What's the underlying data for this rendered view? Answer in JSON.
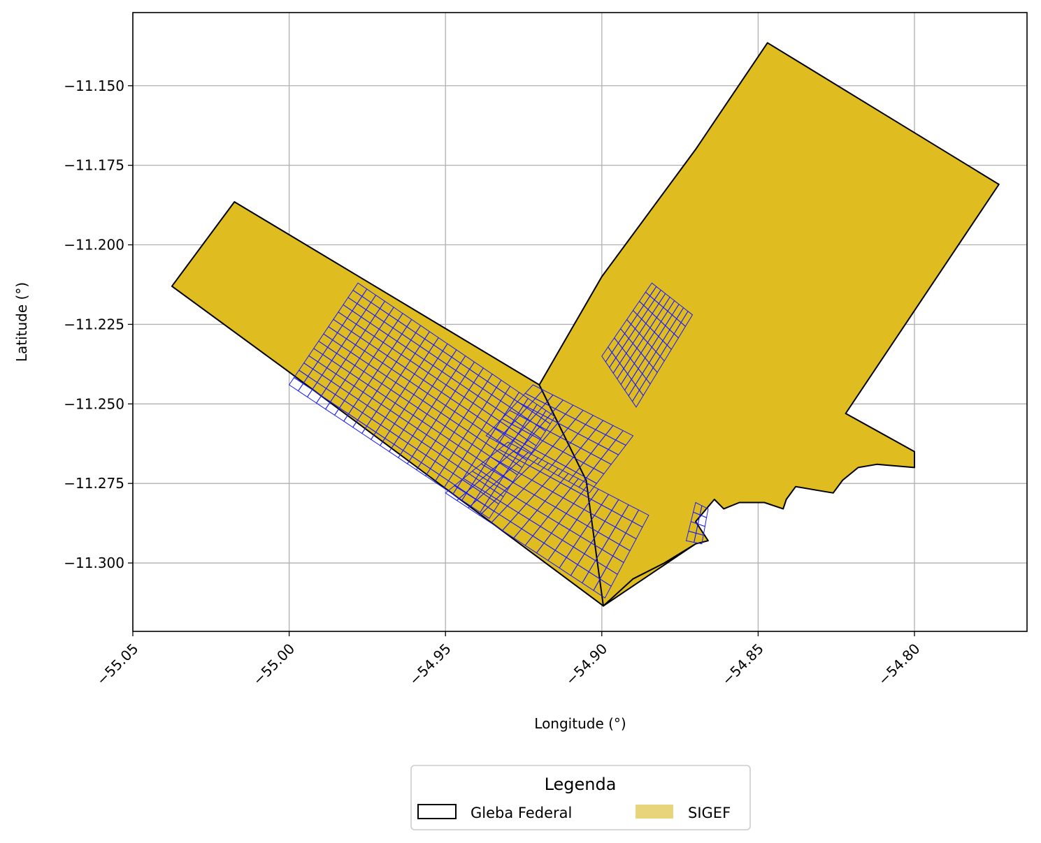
{
  "chart_data": {
    "type": "map",
    "xlabel": "Longitude (°)",
    "ylabel": "Latitude (°)",
    "xlim": [
      -55.05,
      -54.764
    ],
    "ylim": [
      -11.3215,
      -11.127
    ],
    "grid": true,
    "x_ticks": [
      {
        "value": -55.05,
        "label": "−55.05"
      },
      {
        "value": -55.0,
        "label": "−55.00"
      },
      {
        "value": -54.95,
        "label": "−54.95"
      },
      {
        "value": -54.9,
        "label": "−54.90"
      },
      {
        "value": -54.85,
        "label": "−54.85"
      },
      {
        "value": -54.8,
        "label": "−54.80"
      }
    ],
    "y_ticks": [
      {
        "value": -11.15,
        "label": "−11.150"
      },
      {
        "value": -11.175,
        "label": "−11.175"
      },
      {
        "value": -11.2,
        "label": "−11.200"
      },
      {
        "value": -11.225,
        "label": "−11.225"
      },
      {
        "value": -11.25,
        "label": "−11.250"
      },
      {
        "value": -11.275,
        "label": "−11.275"
      },
      {
        "value": -11.3,
        "label": "−11.300"
      }
    ],
    "legend": {
      "title": "Legenda",
      "placement": "bottom-center",
      "entries": [
        {
          "label": "Gleba Federal",
          "style": "outline",
          "color": "#000000"
        },
        {
          "label": "SIGEF",
          "style": "fill",
          "color": "#e8d47a"
        }
      ]
    },
    "colors": {
      "gleba_fill": "#dfbd20",
      "gleba_edge": "#000000",
      "sigef_edge": "#1a1aff",
      "grid": "#b0b0b0"
    },
    "gleba_polygons": [
      {
        "name": "gleba-nw-strip",
        "coords": [
          [
            -55.0375,
            -11.213
          ],
          [
            -55.0175,
            -11.1865
          ],
          [
            -54.92,
            -11.244
          ],
          [
            -54.905,
            -11.274
          ],
          [
            -54.87,
            -11.294
          ],
          [
            -54.8995,
            -11.3135
          ],
          [
            -55.0,
            -11.24
          ]
        ]
      },
      {
        "name": "gleba-ne-block",
        "coords": [
          [
            -54.847,
            -11.1365
          ],
          [
            -54.773,
            -11.181
          ],
          [
            -54.822,
            -11.253
          ],
          [
            -54.8,
            -11.265
          ],
          [
            -54.8,
            -11.27
          ],
          [
            -54.812,
            -11.269
          ],
          [
            -54.818,
            -11.27
          ],
          [
            -54.823,
            -11.274
          ],
          [
            -54.826,
            -11.278
          ],
          [
            -54.832,
            -11.277
          ],
          [
            -54.838,
            -11.276
          ],
          [
            -54.841,
            -11.28
          ],
          [
            -54.842,
            -11.283
          ],
          [
            -54.848,
            -11.281
          ],
          [
            -54.856,
            -11.281
          ],
          [
            -54.861,
            -11.283
          ],
          [
            -54.864,
            -11.28
          ],
          [
            -54.87,
            -11.287
          ],
          [
            -54.866,
            -11.293
          ],
          [
            -54.87,
            -11.294
          ],
          [
            -54.88,
            -11.3
          ],
          [
            -54.89,
            -11.305
          ],
          [
            -54.8995,
            -11.3135
          ],
          [
            -54.905,
            -11.274
          ],
          [
            -54.92,
            -11.244
          ],
          [
            -54.9,
            -11.21
          ],
          [
            -54.87,
            -11.17
          ]
        ]
      }
    ],
    "sigef_regions": [
      {
        "name": "sigef-west-cluster",
        "corners": [
          [
            -54.978,
            -11.212
          ],
          [
            -54.915,
            -11.254
          ],
          [
            -54.936,
            -11.286
          ],
          [
            -55.0,
            -11.244
          ]
        ],
        "rows": 14,
        "cols": 22
      },
      {
        "name": "sigef-south-cluster",
        "corners": [
          [
            -54.93,
            -11.262
          ],
          [
            -54.885,
            -11.285
          ],
          [
            -54.899,
            -11.311
          ],
          [
            -54.95,
            -11.278
          ]
        ],
        "rows": 7,
        "cols": 14
      },
      {
        "name": "sigef-central-cluster",
        "corners": [
          [
            -54.922,
            -11.244
          ],
          [
            -54.89,
            -11.26
          ],
          [
            -54.904,
            -11.278
          ],
          [
            -54.937,
            -11.26
          ]
        ],
        "rows": 6,
        "cols": 10
      },
      {
        "name": "sigef-north-cluster",
        "corners": [
          [
            -54.884,
            -11.212
          ],
          [
            -54.871,
            -11.222
          ],
          [
            -54.889,
            -11.251
          ],
          [
            -54.9,
            -11.235
          ]
        ],
        "rows": 8,
        "cols": 9
      },
      {
        "name": "sigef-east-finger",
        "corners": [
          [
            -54.87,
            -11.281
          ],
          [
            -54.866,
            -11.283
          ],
          [
            -54.868,
            -11.294
          ],
          [
            -54.873,
            -11.293
          ]
        ],
        "rows": 4,
        "cols": 2
      }
    ]
  }
}
